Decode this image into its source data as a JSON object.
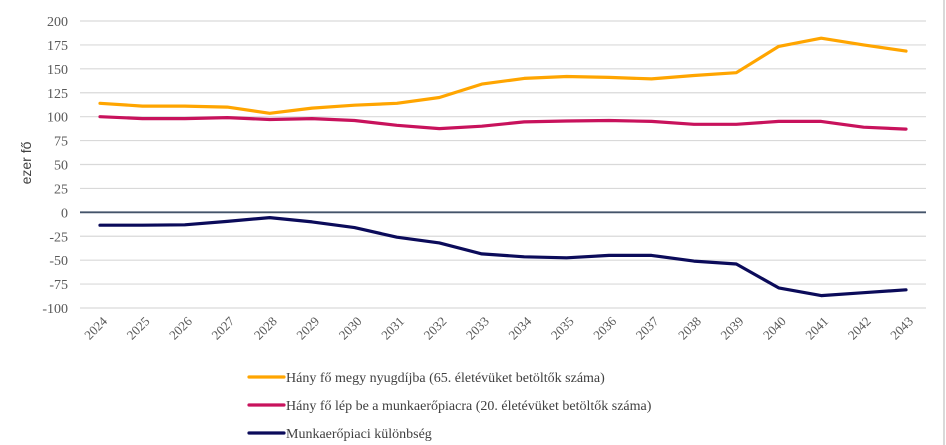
{
  "chart_data": {
    "type": "line",
    "title": "",
    "xlabel": "",
    "ylabel": "ezer fő",
    "ylim": [
      -100,
      200
    ],
    "ytick_step": 25,
    "yticks": [
      "200",
      "175",
      "150",
      "125",
      "100",
      "75",
      "50",
      "25",
      "0",
      "-25",
      "-50",
      "-75",
      "-100"
    ],
    "grid": true,
    "legend_position": "bottom",
    "categories": [
      "2024",
      "2025",
      "2026",
      "2027",
      "2028",
      "2029",
      "2030",
      "2031",
      "2032",
      "2033",
      "2034",
      "2035",
      "2036",
      "2037",
      "2038",
      "2039",
      "2040",
      "2041",
      "2042",
      "2043"
    ],
    "series": [
      {
        "name": "Hány fő megy nyugdíjba (65. életévüket betöltők száma)",
        "color": "#FFA500",
        "values": [
          114,
          111,
          111,
          110,
          103.5,
          109,
          112,
          114,
          120,
          134,
          140,
          142,
          141,
          139.5,
          143,
          146,
          173.5,
          182,
          175,
          168.5
        ]
      },
      {
        "name": "Hány fő lép be a munkaerőpiacra (20. életévüket betöltők száma)",
        "color": "#C8125C",
        "values": [
          100,
          98,
          98,
          99,
          97,
          98,
          96,
          91,
          87.5,
          90,
          94.5,
          95.5,
          96,
          95,
          92,
          92,
          95,
          95,
          89,
          87
        ]
      },
      {
        "name": "Munkaerőpiaci különbség",
        "color": "#0B0B5A",
        "values": [
          -13.5,
          -13.5,
          -13,
          -9.5,
          -5.5,
          -10,
          -16,
          -26,
          -32,
          -43.5,
          -46.5,
          -47.5,
          -45,
          -45,
          -51,
          -54,
          -79,
          -87,
          -84,
          -81
        ]
      }
    ],
    "zero_line_color": "#44546A"
  }
}
